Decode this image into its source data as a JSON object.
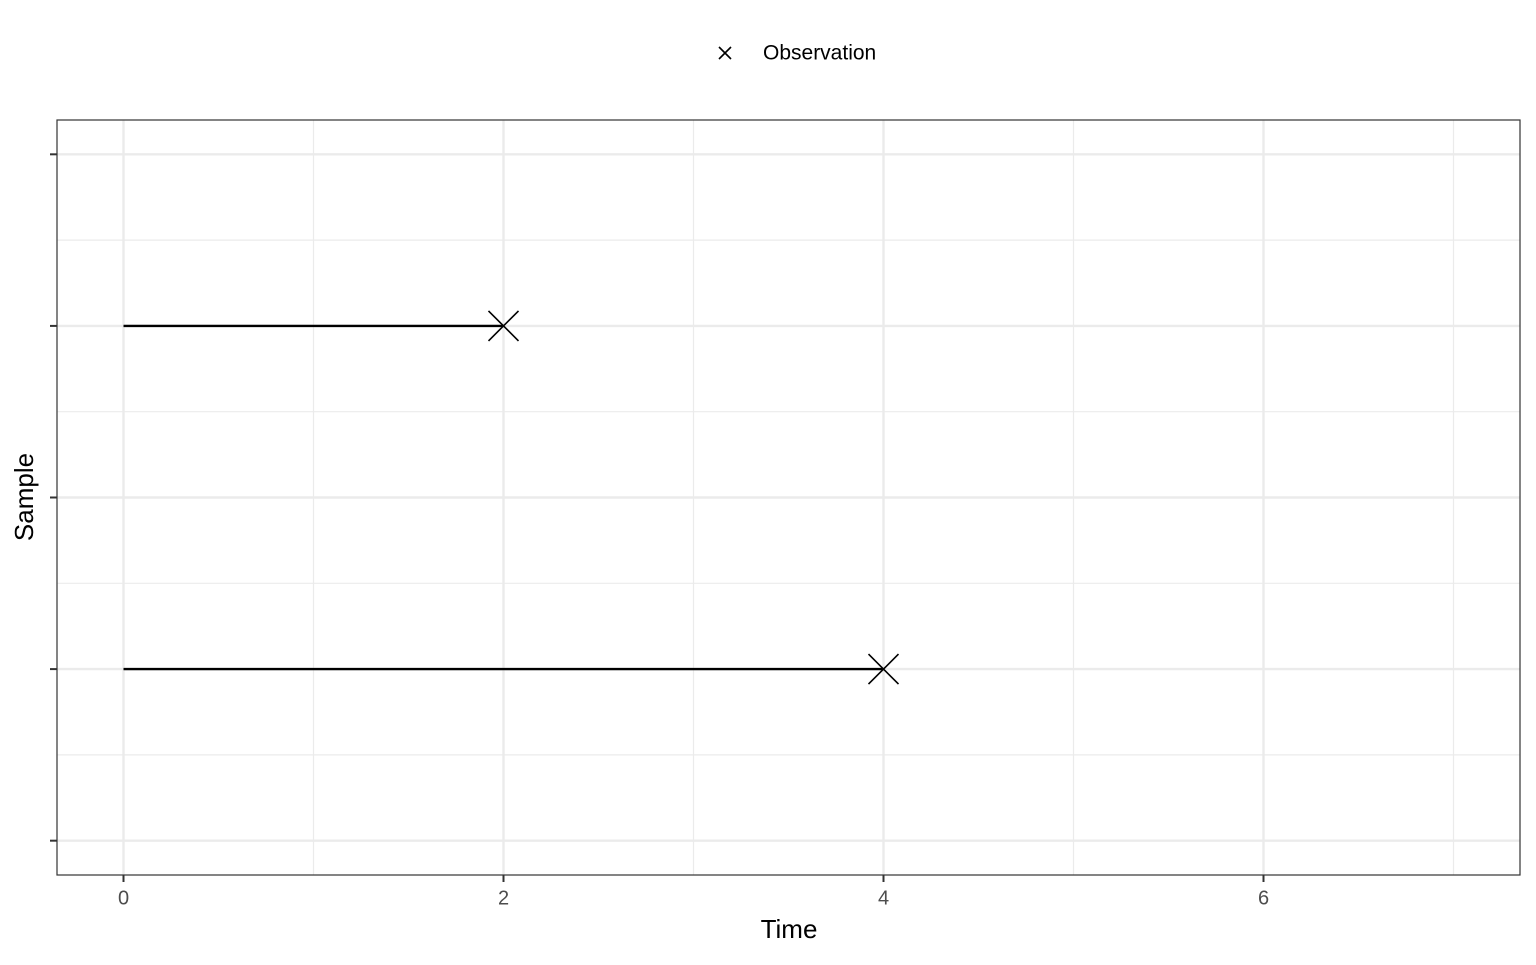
{
  "chart_data": {
    "type": "segment",
    "x_label": "Time",
    "y_label": "Sample",
    "xlim": [
      -0.35,
      7.35
    ],
    "xticks": [
      0,
      2,
      4,
      6
    ],
    "x_minor_ticks": [
      1,
      3,
      5,
      7
    ],
    "ylim": [
      0.4,
      2.6
    ],
    "yticks": [
      0.5,
      1,
      1.5,
      2,
      2.5
    ],
    "y_minor_ticks": [
      0.75,
      1.25,
      1.75,
      2.25
    ],
    "grid": true,
    "series": [
      {
        "name": "Observation",
        "color": "#000000",
        "y": [
          1,
          2
        ],
        "start": [
          0,
          0
        ],
        "end": [
          4,
          2
        ]
      }
    ]
  }
}
